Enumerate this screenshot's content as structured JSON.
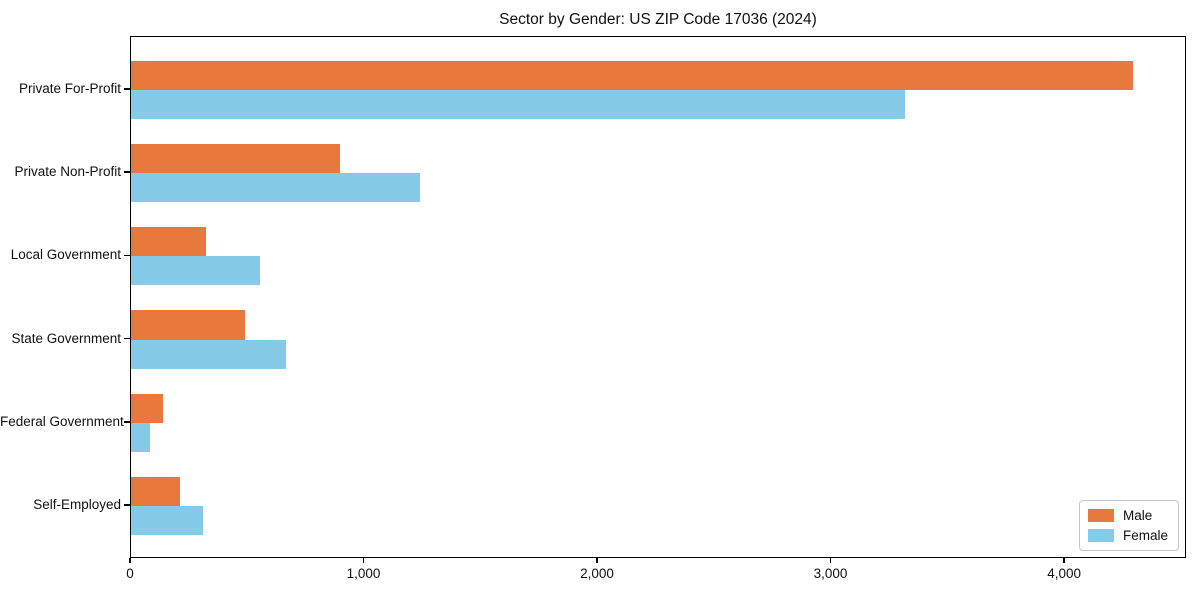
{
  "chart_data": {
    "type": "bar",
    "orientation": "horizontal",
    "title": "Sector by Gender: US ZIP Code 17036 (2024)",
    "categories": [
      "Private For-Profit",
      "Private Non-Profit",
      "Local Government",
      "State Government",
      "Federal Government",
      "Self-Employed"
    ],
    "series": [
      {
        "name": "Male",
        "color": "#e8793d",
        "values": [
          4300,
          895,
          320,
          490,
          137,
          210
        ]
      },
      {
        "name": "Female",
        "color": "#85cbe8",
        "values": [
          3320,
          1240,
          555,
          665,
          80,
          310
        ]
      }
    ],
    "xlabel": "",
    "ylabel": "",
    "xlim": [
      0,
      4522
    ],
    "xticks": [
      0,
      1000,
      2000,
      3000,
      4000
    ],
    "xtick_labels": [
      "0",
      "1,000",
      "2,000",
      "3,000",
      "4,000"
    ],
    "grid": false,
    "legend": {
      "position": "lower-right",
      "entries": [
        "Male",
        "Female"
      ]
    },
    "axis_color": "#000000",
    "background_color": "#ffffff"
  }
}
